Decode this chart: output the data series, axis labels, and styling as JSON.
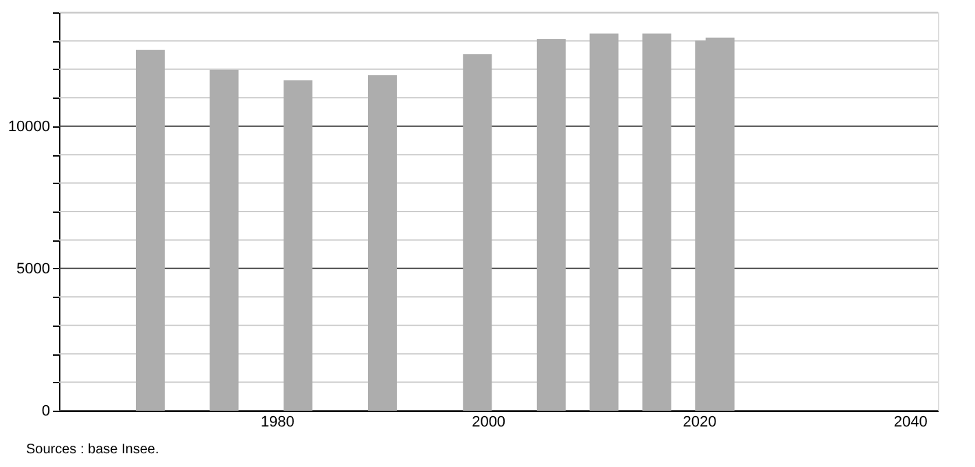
{
  "chart_data": {
    "type": "bar",
    "x": [
      1968,
      1975,
      1982,
      1990,
      1999,
      2006,
      2011,
      2016,
      2021,
      2022
    ],
    "values": [
      12680,
      11980,
      11610,
      11800,
      12530,
      13060,
      13260,
      13260,
      13010,
      13110
    ],
    "color": "#adadad",
    "xlim": [
      1960,
      2042
    ],
    "xticks": [
      1980,
      2000,
      2020,
      2040
    ],
    "ylim": [
      0,
      14000
    ],
    "yticks": [
      0,
      {
        "value": 1000,
        "label": null
      },
      {
        "value": 2000,
        "label": null
      },
      {
        "value": 3000,
        "label": null
      },
      {
        "value": 4000,
        "label": null
      },
      5000,
      {
        "value": 6000,
        "label": null
      },
      {
        "value": 7000,
        "label": null
      },
      {
        "value": 8000,
        "label": null
      },
      {
        "value": 9000,
        "label": null
      },
      10000,
      {
        "value": 11000,
        "label": null
      },
      {
        "value": 12000,
        "label": null
      },
      {
        "value": 13000,
        "label": null
      },
      {
        "value": 14000,
        "label": null
      }
    ],
    "grid": "y",
    "annotations": [
      "Sources : base Insee."
    ]
  }
}
